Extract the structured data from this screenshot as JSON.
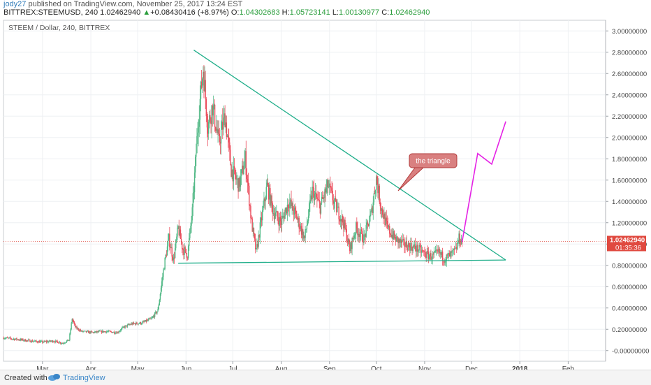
{
  "header": {
    "author": "jody27",
    "published": "published on TradingView.com, November 25, 2017 13:24 EST",
    "symbol": "BITTREX:STEEMUSD, 240",
    "last": "1.02462940",
    "change_arrow": "▲",
    "change": "+0.08430416 (+8.97%)",
    "o_label": "O:",
    "o_value": "1.04302683",
    "h_label": "H:",
    "h_value": "1.05723141",
    "l_label": "L:",
    "l_value": "1.00130977",
    "c_label": "C:",
    "c_value": "1.02462940"
  },
  "chart_data": {
    "type": "candlestick",
    "title": "STEEM / Dollar, 240, BITTREX",
    "x_axis": {
      "ticks": [
        "Mar",
        "Apr",
        "May",
        "Jun",
        "Jul",
        "Aug",
        "Sep",
        "Oct",
        "Nov",
        "Dec",
        "2018",
        "Feb"
      ],
      "tick_dates": [
        "2017-03-01",
        "2017-04-01",
        "2017-05-01",
        "2017-06-01",
        "2017-07-01",
        "2017-08-01",
        "2017-09-01",
        "2017-10-01",
        "2017-11-01",
        "2017-12-01",
        "2018-01-01",
        "2018-02-01"
      ],
      "range": [
        "2017-02-04",
        "2018-02-25"
      ]
    },
    "y_axis": {
      "ticks": [
        "3.00000000",
        "2.80000000",
        "2.60000000",
        "2.40000000",
        "2.20000000",
        "2.00000000",
        "1.80000000",
        "1.60000000",
        "1.40000000",
        "1.20000000",
        "1.00000000",
        "0.80000000",
        "0.60000000",
        "0.40000000",
        "0.20000000",
        "-0.00000000"
      ],
      "range": [
        -0.1,
        3.1
      ]
    },
    "last_price_label": "1.02462940",
    "countdown_label": "01:35:36",
    "price_path": [
      {
        "x": "2017-02-04",
        "y": 0.12
      },
      {
        "x": "2017-02-10",
        "y": 0.11
      },
      {
        "x": "2017-02-16",
        "y": 0.1
      },
      {
        "x": "2017-02-22",
        "y": 0.09
      },
      {
        "x": "2017-03-01",
        "y": 0.08
      },
      {
        "x": "2017-03-08",
        "y": 0.09
      },
      {
        "x": "2017-03-14",
        "y": 0.07
      },
      {
        "x": "2017-03-18",
        "y": 0.1
      },
      {
        "x": "2017-03-20",
        "y": 0.3
      },
      {
        "x": "2017-03-22",
        "y": 0.22
      },
      {
        "x": "2017-03-26",
        "y": 0.18
      },
      {
        "x": "2017-04-02",
        "y": 0.17
      },
      {
        "x": "2017-04-10",
        "y": 0.18
      },
      {
        "x": "2017-04-18",
        "y": 0.17
      },
      {
        "x": "2017-04-22",
        "y": 0.22
      },
      {
        "x": "2017-04-27",
        "y": 0.25
      },
      {
        "x": "2017-05-04",
        "y": 0.26
      },
      {
        "x": "2017-05-10",
        "y": 0.3
      },
      {
        "x": "2017-05-14",
        "y": 0.38
      },
      {
        "x": "2017-05-18",
        "y": 0.8
      },
      {
        "x": "2017-05-21",
        "y": 1.05
      },
      {
        "x": "2017-05-24",
        "y": 0.85
      },
      {
        "x": "2017-05-27",
        "y": 1.15
      },
      {
        "x": "2017-05-30",
        "y": 0.95
      },
      {
        "x": "2017-06-02",
        "y": 0.9
      },
      {
        "x": "2017-06-05",
        "y": 1.3
      },
      {
        "x": "2017-06-09",
        "y": 2.2
      },
      {
        "x": "2017-06-12",
        "y": 2.65
      },
      {
        "x": "2017-06-15",
        "y": 2.1
      },
      {
        "x": "2017-06-18",
        "y": 2.3
      },
      {
        "x": "2017-06-22",
        "y": 1.95
      },
      {
        "x": "2017-06-26",
        "y": 2.2
      },
      {
        "x": "2017-06-30",
        "y": 1.7
      },
      {
        "x": "2017-07-05",
        "y": 1.55
      },
      {
        "x": "2017-07-09",
        "y": 1.8
      },
      {
        "x": "2017-07-13",
        "y": 1.2
      },
      {
        "x": "2017-07-16",
        "y": 0.92
      },
      {
        "x": "2017-07-19",
        "y": 1.2
      },
      {
        "x": "2017-07-23",
        "y": 1.55
      },
      {
        "x": "2017-07-27",
        "y": 1.3
      },
      {
        "x": "2017-08-01",
        "y": 1.2
      },
      {
        "x": "2017-08-06",
        "y": 1.4
      },
      {
        "x": "2017-08-11",
        "y": 1.25
      },
      {
        "x": "2017-08-16",
        "y": 1.05
      },
      {
        "x": "2017-08-21",
        "y": 1.5
      },
      {
        "x": "2017-08-26",
        "y": 1.35
      },
      {
        "x": "2017-08-31",
        "y": 1.55
      },
      {
        "x": "2017-09-05",
        "y": 1.35
      },
      {
        "x": "2017-09-10",
        "y": 1.2
      },
      {
        "x": "2017-09-14",
        "y": 0.95
      },
      {
        "x": "2017-09-18",
        "y": 1.15
      },
      {
        "x": "2017-09-23",
        "y": 1.05
      },
      {
        "x": "2017-09-28",
        "y": 1.3
      },
      {
        "x": "2017-10-01",
        "y": 1.62
      },
      {
        "x": "2017-10-04",
        "y": 1.35
      },
      {
        "x": "2017-10-08",
        "y": 1.15
      },
      {
        "x": "2017-10-13",
        "y": 1.05
      },
      {
        "x": "2017-10-18",
        "y": 1.0
      },
      {
        "x": "2017-10-23",
        "y": 0.98
      },
      {
        "x": "2017-10-28",
        "y": 0.95
      },
      {
        "x": "2017-11-02",
        "y": 0.9
      },
      {
        "x": "2017-11-06",
        "y": 0.88
      },
      {
        "x": "2017-11-10",
        "y": 0.92
      },
      {
        "x": "2017-11-14",
        "y": 0.86
      },
      {
        "x": "2017-11-18",
        "y": 0.9
      },
      {
        "x": "2017-11-21",
        "y": 0.94
      },
      {
        "x": "2017-11-23",
        "y": 1.05
      },
      {
        "x": "2017-11-25",
        "y": 1.02
      }
    ],
    "annotations": {
      "triangle_upper_line": [
        {
          "x": "2017-06-06",
          "y": 2.82
        },
        {
          "x": "2017-12-23",
          "y": 0.85
        }
      ],
      "triangle_lower_line": [
        {
          "x": "2017-05-27",
          "y": 0.82
        },
        {
          "x": "2017-12-23",
          "y": 0.85
        }
      ],
      "projection_line": [
        {
          "x": "2017-11-25",
          "y": 1.02
        },
        {
          "x": "2017-12-05",
          "y": 1.85
        },
        {
          "x": "2017-12-14",
          "y": 1.75
        },
        {
          "x": "2017-12-23",
          "y": 2.15
        }
      ],
      "last_price_line": 1.0246294,
      "callout_text": "the triangle",
      "callout_pointer": {
        "x": "2017-10-15",
        "y": 1.5
      }
    },
    "colors": {
      "up": "#53b987",
      "down": "#eb4d5c",
      "triangle": "#1fae8a",
      "projection": "#e522e5",
      "last_price": "#e0493f",
      "callout_fill": "#d98080",
      "callout_border": "#b23a3a"
    }
  },
  "footer": {
    "created_with": "Created with",
    "brand": "TradingView"
  }
}
